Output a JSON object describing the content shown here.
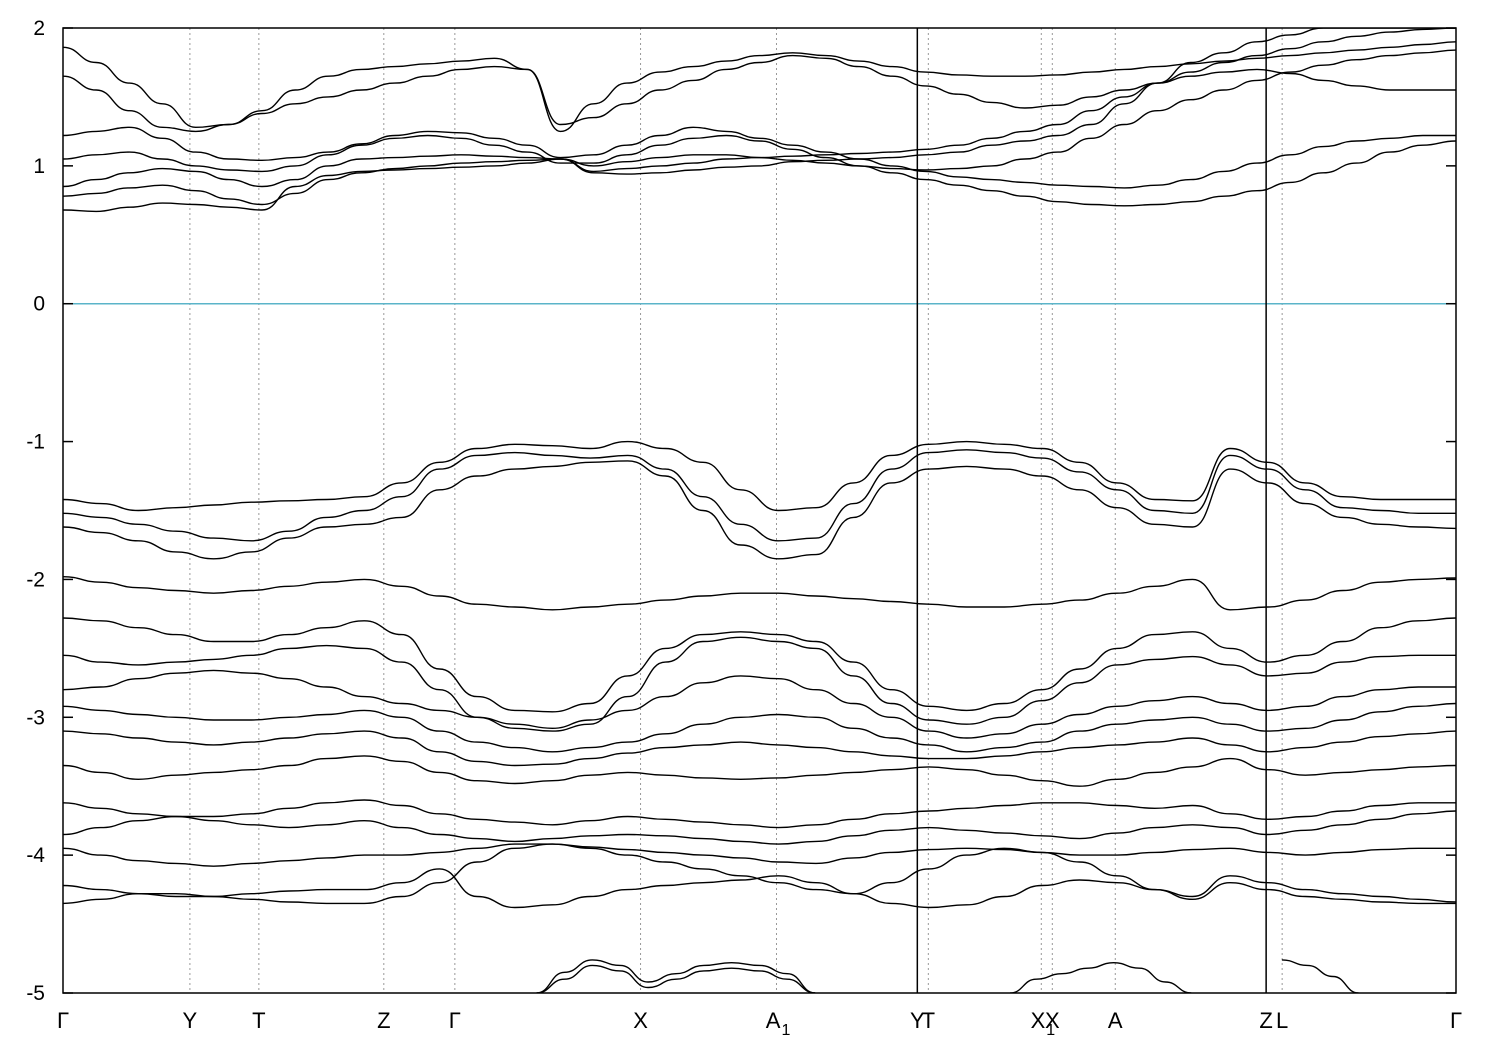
{
  "chart_data": {
    "type": "line",
    "title": "",
    "xlabel": "",
    "ylabel": "",
    "ylim": [
      -5,
      2
    ],
    "xlim": [
      0,
      1
    ],
    "y_ticks": [
      {
        "value": 2,
        "label": "2"
      },
      {
        "value": 1,
        "label": "1"
      },
      {
        "value": 0,
        "label": "0"
      },
      {
        "value": -1,
        "label": "-1"
      },
      {
        "value": -2,
        "label": "-2"
      },
      {
        "value": -3,
        "label": "-3"
      },
      {
        "value": -4,
        "label": "-4"
      },
      {
        "value": -5,
        "label": "-5"
      }
    ],
    "kpoints": [
      {
        "x": 0.0,
        "label": "Γ",
        "sub": ""
      },
      {
        "x": 0.0911,
        "label": "Y",
        "sub": ""
      },
      {
        "x": 0.1406,
        "label": "T",
        "sub": ""
      },
      {
        "x": 0.2303,
        "label": "Z",
        "sub": ""
      },
      {
        "x": 0.2813,
        "label": "Γ",
        "sub": ""
      },
      {
        "x": 0.4146,
        "label": "X",
        "sub": ""
      },
      {
        "x": 0.5122,
        "label": "A",
        "sub": "1"
      },
      {
        "x": 0.6133,
        "label": "Y",
        "sub": ""
      },
      {
        "x": 0.6212,
        "label": "T",
        "sub": ""
      },
      {
        "x": 0.7023,
        "label": "X",
        "sub": "1"
      },
      {
        "x": 0.7102,
        "label": "X",
        "sub": ""
      },
      {
        "x": 0.7554,
        "label": "A",
        "sub": ""
      },
      {
        "x": 0.8637,
        "label": "Z",
        "sub": ""
      },
      {
        "x": 0.8752,
        "label": "L",
        "sub": ""
      },
      {
        "x": 1.0,
        "label": "Γ",
        "sub": ""
      }
    ],
    "segment_breaks": [
      0.6133,
      0.8637
    ],
    "fermi_level": {
      "value": 0,
      "color": "#5bb4c9"
    },
    "line_color": "#000000",
    "series": [
      {
        "values": [
          0.68,
          0.67,
          0.7,
          0.73,
          0.72,
          0.7,
          0.68,
          0.85,
          0.93,
          0.96,
          0.97,
          0.98,
          0.99,
          1.0,
          1.02,
          1.05,
          0.95,
          0.94,
          0.95,
          0.97,
          0.99,
          1.0,
          1.03,
          1.04,
          1.05,
          1.06,
          1.08,
          1.1,
          1.15,
          1.18,
          1.22,
          1.3,
          1.45,
          1.6,
          1.75,
          1.82,
          1.9,
          1.95,
          2.0,
          2.0,
          2.0,
          2.0,
          2.0
        ]
      },
      {
        "values": [
          0.78,
          0.8,
          0.84,
          0.86,
          0.82,
          0.76,
          0.72,
          0.8,
          0.9,
          0.95,
          0.98,
          1.0,
          1.02,
          1.03,
          1.04,
          1.05,
          0.96,
          0.98,
          1.0,
          1.02,
          1.05,
          1.06,
          1.07,
          1.08,
          1.09,
          1.1,
          1.12,
          1.15,
          1.2,
          1.25,
          1.3,
          1.4,
          1.5,
          1.6,
          1.68,
          1.75,
          1.8,
          1.85,
          1.9,
          1.94,
          1.97,
          1.99,
          2.0
        ]
      },
      {
        "values": [
          0.85,
          0.9,
          0.95,
          0.98,
          0.96,
          0.9,
          0.85,
          0.9,
          1.0,
          1.05,
          1.06,
          1.07,
          1.08,
          1.07,
          1.06,
          1.05,
          1.0,
          1.03,
          1.06,
          1.08,
          1.08,
          1.06,
          1.04,
          1.02,
          1.0,
          0.98,
          0.97,
          0.98,
          1.0,
          1.05,
          1.1,
          1.2,
          1.3,
          1.4,
          1.48,
          1.55,
          1.62,
          1.68,
          1.73,
          1.77,
          1.8,
          1.82,
          1.84
        ]
      },
      {
        "values": [
          1.05,
          1.08,
          1.1,
          1.05,
          1.0,
          0.97,
          0.96,
          1.0,
          1.08,
          1.15,
          1.2,
          1.22,
          1.2,
          1.15,
          1.1,
          1.02,
          1.02,
          1.08,
          1.15,
          1.2,
          1.22,
          1.18,
          1.12,
          1.06,
          1.0,
          0.95,
          0.9,
          0.86,
          0.82,
          0.78,
          0.74,
          0.72,
          0.71,
          0.72,
          0.74,
          0.78,
          0.82,
          0.88,
          0.95,
          1.02,
          1.1,
          1.15,
          1.18
        ]
      },
      {
        "values": [
          1.22,
          1.25,
          1.28,
          1.2,
          1.1,
          1.05,
          1.04,
          1.06,
          1.1,
          1.16,
          1.22,
          1.25,
          1.24,
          1.2,
          1.15,
          1.06,
          1.08,
          1.15,
          1.22,
          1.28,
          1.25,
          1.2,
          1.15,
          1.1,
          1.05,
          1.0,
          0.96,
          0.92,
          0.9,
          0.88,
          0.86,
          0.85,
          0.84,
          0.86,
          0.9,
          0.96,
          1.02,
          1.08,
          1.14,
          1.18,
          1.2,
          1.22,
          1.22
        ]
      },
      {
        "values": [
          1.65,
          1.55,
          1.4,
          1.28,
          1.25,
          1.3,
          1.38,
          1.45,
          1.5,
          1.55,
          1.6,
          1.65,
          1.7,
          1.72,
          1.7,
          1.3,
          1.35,
          1.45,
          1.55,
          1.62,
          1.7,
          1.75,
          1.8,
          1.78,
          1.72,
          1.65,
          1.58,
          1.52,
          1.46,
          1.42,
          1.44,
          1.5,
          1.55,
          1.6,
          1.65,
          1.68,
          1.7,
          1.67,
          1.62,
          1.58,
          1.55,
          1.55,
          1.55
        ]
      },
      {
        "values": [
          1.86,
          1.75,
          1.6,
          1.45,
          1.28,
          1.3,
          1.4,
          1.55,
          1.65,
          1.7,
          1.72,
          1.74,
          1.76,
          1.78,
          1.7,
          1.25,
          1.45,
          1.6,
          1.68,
          1.72,
          1.76,
          1.8,
          1.82,
          1.8,
          1.76,
          1.72,
          1.68,
          1.66,
          1.65,
          1.65,
          1.66,
          1.68,
          1.7,
          1.72,
          1.74,
          1.76,
          1.78,
          1.8,
          1.82,
          1.84,
          1.86,
          1.88,
          1.9
        ]
      }
    ],
    "valence": [
      {
        "values": [
          -1.42,
          -1.45,
          -1.5,
          -1.48,
          -1.46,
          -1.44,
          -1.43,
          -1.42,
          -1.4,
          -1.3,
          -1.15,
          -1.05,
          -1.02,
          -1.03,
          -1.05,
          -1.0,
          -1.05,
          -1.15,
          -1.35,
          -1.5,
          -1.48,
          -1.3,
          -1.1,
          -1.02,
          -1.0,
          -1.02,
          -1.05,
          -1.15,
          -1.3,
          -1.42,
          -1.43,
          -1.05,
          -1.15,
          -1.3,
          -1.4,
          -1.42,
          -1.42,
          -1.42
        ]
      },
      {
        "values": [
          -1.52,
          -1.55,
          -1.6,
          -1.65,
          -1.7,
          -1.72,
          -1.65,
          -1.55,
          -1.5,
          -1.4,
          -1.2,
          -1.1,
          -1.08,
          -1.1,
          -1.12,
          -1.1,
          -1.2,
          -1.4,
          -1.6,
          -1.72,
          -1.7,
          -1.45,
          -1.2,
          -1.08,
          -1.06,
          -1.08,
          -1.12,
          -1.22,
          -1.35,
          -1.5,
          -1.52,
          -1.1,
          -1.2,
          -1.35,
          -1.48,
          -1.5,
          -1.52,
          -1.52
        ]
      },
      {
        "values": [
          -1.62,
          -1.66,
          -1.72,
          -1.8,
          -1.85,
          -1.8,
          -1.7,
          -1.62,
          -1.6,
          -1.55,
          -1.35,
          -1.25,
          -1.2,
          -1.18,
          -1.15,
          -1.14,
          -1.25,
          -1.5,
          -1.75,
          -1.85,
          -1.82,
          -1.55,
          -1.3,
          -1.2,
          -1.18,
          -1.2,
          -1.25,
          -1.35,
          -1.48,
          -1.6,
          -1.62,
          -1.2,
          -1.3,
          -1.45,
          -1.55,
          -1.6,
          -1.62,
          -1.63
        ]
      },
      {
        "values": [
          -1.98,
          -2.02,
          -2.06,
          -2.08,
          -2.1,
          -2.08,
          -2.05,
          -2.02,
          -2.0,
          -2.05,
          -2.12,
          -2.18,
          -2.2,
          -2.22,
          -2.2,
          -2.18,
          -2.15,
          -2.12,
          -2.1,
          -2.1,
          -2.12,
          -2.14,
          -2.16,
          -2.18,
          -2.2,
          -2.2,
          -2.18,
          -2.15,
          -2.1,
          -2.05,
          -2.0,
          -2.22,
          -2.2,
          -2.15,
          -2.08,
          -2.02,
          -2.0,
          -1.99
        ]
      },
      {
        "values": [
          -2.28,
          -2.3,
          -2.35,
          -2.4,
          -2.45,
          -2.45,
          -2.4,
          -2.35,
          -2.3,
          -2.4,
          -2.65,
          -2.85,
          -2.95,
          -2.96,
          -2.9,
          -2.7,
          -2.5,
          -2.4,
          -2.38,
          -2.4,
          -2.45,
          -2.6,
          -2.8,
          -2.92,
          -2.95,
          -2.9,
          -2.8,
          -2.65,
          -2.5,
          -2.4,
          -2.38,
          -2.5,
          -2.6,
          -2.55,
          -2.45,
          -2.35,
          -2.3,
          -2.28
        ]
      },
      {
        "values": [
          -2.55,
          -2.6,
          -2.62,
          -2.6,
          -2.58,
          -2.55,
          -2.5,
          -2.48,
          -2.5,
          -2.6,
          -2.8,
          -3.0,
          -3.08,
          -3.1,
          -3.05,
          -2.85,
          -2.6,
          -2.45,
          -2.42,
          -2.45,
          -2.5,
          -2.7,
          -2.9,
          -3.02,
          -3.05,
          -3.0,
          -2.88,
          -2.75,
          -2.62,
          -2.58,
          -2.56,
          -2.62,
          -2.7,
          -2.68,
          -2.6,
          -2.56,
          -2.55,
          -2.55
        ]
      },
      {
        "values": [
          -2.8,
          -2.78,
          -2.72,
          -2.68,
          -2.66,
          -2.68,
          -2.72,
          -2.78,
          -2.85,
          -2.9,
          -2.95,
          -3.0,
          -3.05,
          -3.08,
          -3.02,
          -2.95,
          -2.85,
          -2.75,
          -2.7,
          -2.72,
          -2.8,
          -2.9,
          -3.0,
          -3.1,
          -3.15,
          -3.12,
          -3.05,
          -2.98,
          -2.92,
          -2.88,
          -2.85,
          -2.9,
          -2.95,
          -2.92,
          -2.85,
          -2.8,
          -2.78,
          -2.78
        ]
      },
      {
        "values": [
          -2.92,
          -2.95,
          -2.98,
          -3.0,
          -3.02,
          -3.02,
          -3.0,
          -2.98,
          -2.95,
          -3.0,
          -3.1,
          -3.18,
          -3.22,
          -3.25,
          -3.22,
          -3.18,
          -3.12,
          -3.05,
          -3.0,
          -2.98,
          -3.0,
          -3.08,
          -3.15,
          -3.2,
          -3.25,
          -3.22,
          -3.18,
          -3.1,
          -3.05,
          -3.02,
          -3.0,
          -3.05,
          -3.1,
          -3.08,
          -3.02,
          -2.96,
          -2.92,
          -2.9
        ]
      },
      {
        "values": [
          -3.1,
          -3.12,
          -3.15,
          -3.18,
          -3.2,
          -3.18,
          -3.15,
          -3.12,
          -3.1,
          -3.15,
          -3.25,
          -3.32,
          -3.35,
          -3.34,
          -3.3,
          -3.26,
          -3.22,
          -3.2,
          -3.18,
          -3.2,
          -3.22,
          -3.25,
          -3.28,
          -3.3,
          -3.3,
          -3.28,
          -3.25,
          -3.22,
          -3.2,
          -3.18,
          -3.15,
          -3.2,
          -3.25,
          -3.22,
          -3.18,
          -3.14,
          -3.12,
          -3.1
        ]
      },
      {
        "values": [
          -3.35,
          -3.4,
          -3.45,
          -3.42,
          -3.4,
          -3.38,
          -3.35,
          -3.3,
          -3.28,
          -3.32,
          -3.4,
          -3.46,
          -3.48,
          -3.46,
          -3.42,
          -3.4,
          -3.42,
          -3.44,
          -3.45,
          -3.44,
          -3.42,
          -3.4,
          -3.38,
          -3.36,
          -3.38,
          -3.42,
          -3.46,
          -3.5,
          -3.45,
          -3.4,
          -3.36,
          -3.3,
          -3.38,
          -3.42,
          -3.4,
          -3.38,
          -3.36,
          -3.35
        ]
      },
      {
        "values": [
          -3.62,
          -3.66,
          -3.7,
          -3.72,
          -3.72,
          -3.7,
          -3.66,
          -3.62,
          -3.6,
          -3.64,
          -3.7,
          -3.74,
          -3.76,
          -3.78,
          -3.75,
          -3.72,
          -3.74,
          -3.76,
          -3.78,
          -3.8,
          -3.78,
          -3.74,
          -3.7,
          -3.68,
          -3.66,
          -3.64,
          -3.62,
          -3.62,
          -3.64,
          -3.66,
          -3.64,
          -3.7,
          -3.74,
          -3.72,
          -3.68,
          -3.64,
          -3.62,
          -3.62
        ]
      },
      {
        "values": [
          -3.85,
          -3.8,
          -3.75,
          -3.72,
          -3.75,
          -3.78,
          -3.8,
          -3.78,
          -3.75,
          -3.8,
          -3.85,
          -3.88,
          -3.9,
          -3.88,
          -3.86,
          -3.85,
          -3.86,
          -3.88,
          -3.9,
          -3.92,
          -3.9,
          -3.86,
          -3.82,
          -3.8,
          -3.82,
          -3.84,
          -3.86,
          -3.88,
          -3.84,
          -3.8,
          -3.78,
          -3.8,
          -3.85,
          -3.82,
          -3.78,
          -3.74,
          -3.7,
          -3.68
        ]
      },
      {
        "values": [
          -3.95,
          -4.0,
          -4.04,
          -4.06,
          -4.08,
          -4.06,
          -4.04,
          -4.02,
          -4.0,
          -4.0,
          -3.98,
          -3.95,
          -3.92,
          -3.92,
          -3.94,
          -3.96,
          -3.98,
          -4.0,
          -4.02,
          -4.05,
          -4.06,
          -4.02,
          -3.98,
          -3.96,
          -3.95,
          -3.96,
          -3.98,
          -4.0,
          -4.0,
          -3.98,
          -3.96,
          -3.95,
          -3.98,
          -4.0,
          -3.98,
          -3.96,
          -3.95,
          -3.95
        ]
      },
      {
        "values": [
          -4.22,
          -4.25,
          -4.28,
          -4.3,
          -4.3,
          -4.28,
          -4.26,
          -4.25,
          -4.25,
          -4.2,
          -4.1,
          -4.3,
          -4.38,
          -4.36,
          -4.3,
          -4.25,
          -4.22,
          -4.2,
          -4.18,
          -4.15,
          -4.2,
          -4.28,
          -4.35,
          -4.38,
          -4.36,
          -4.3,
          -4.22,
          -4.18,
          -4.2,
          -4.25,
          -4.3,
          -4.15,
          -4.2,
          -4.25,
          -4.28,
          -4.3,
          -4.32,
          -4.34
        ]
      },
      {
        "values": [
          -4.35,
          -4.32,
          -4.28,
          -4.28,
          -4.3,
          -4.32,
          -4.34,
          -4.35,
          -4.35,
          -4.3,
          -4.2,
          -4.05,
          -3.95,
          -3.92,
          -3.95,
          -4.0,
          -4.05,
          -4.1,
          -4.15,
          -4.2,
          -4.25,
          -4.28,
          -4.2,
          -4.1,
          -4.0,
          -3.95,
          -3.98,
          -4.05,
          -4.15,
          -4.25,
          -4.32,
          -4.2,
          -4.25,
          -4.3,
          -4.32,
          -4.34,
          -4.35,
          -4.35
        ]
      }
    ],
    "deep": [
      {
        "x0": 0.34,
        "x1": 0.54,
        "values": [
          -5.0,
          -4.85,
          -4.76,
          -4.8,
          -4.92,
          -4.86,
          -4.8,
          -4.78,
          -4.8,
          -4.86,
          -5.0
        ]
      },
      {
        "x0": 0.34,
        "x1": 0.54,
        "values": [
          -5.0,
          -4.9,
          -4.8,
          -4.84,
          -4.96,
          -4.9,
          -4.84,
          -4.82,
          -4.84,
          -4.9,
          -5.0
        ]
      },
      {
        "x0": 0.68,
        "x1": 0.81,
        "values": [
          -5.0,
          -4.9,
          -4.86,
          -4.82,
          -4.78,
          -4.82,
          -4.92,
          -5.0
        ]
      },
      {
        "x0": 0.875,
        "x1": 0.93,
        "values": [
          -4.76,
          -4.8,
          -4.88,
          -5.0
        ]
      }
    ]
  }
}
